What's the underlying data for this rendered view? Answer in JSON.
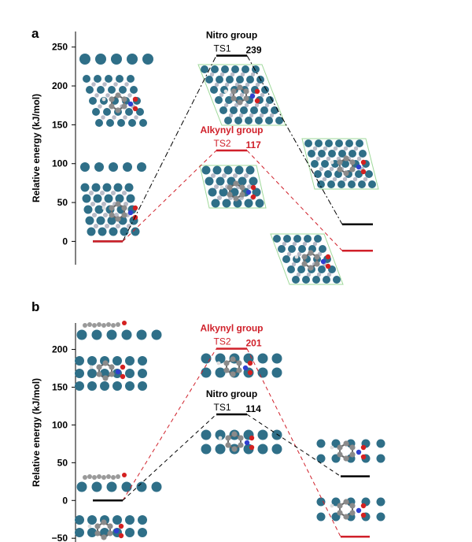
{
  "chart_data": [
    {
      "type": "energy-profile",
      "panel_label": "a",
      "ylabel": "Relative energy (kJ/mol)",
      "ylim": [
        -30,
        270
      ],
      "yticks": [
        0,
        50,
        100,
        150,
        200,
        250
      ],
      "series": [
        {
          "name": "Nitro group",
          "color": "#000000",
          "points": [
            {
              "stage": "initial",
              "energy": 0
            },
            {
              "stage": "TS",
              "label": "TS1",
              "energy": 239
            },
            {
              "stage": "final",
              "energy": 22
            }
          ]
        },
        {
          "name": "Alkynyl group",
          "color": "#d0202a",
          "points": [
            {
              "stage": "initial",
              "energy": 0
            },
            {
              "stage": "TS",
              "label": "TS2",
              "energy": 117
            },
            {
              "stage": "final",
              "energy": -12
            }
          ]
        }
      ]
    },
    {
      "type": "energy-profile",
      "panel_label": "b",
      "ylabel": "Relative energy (kJ/mol)",
      "ylim": [
        -55,
        235
      ],
      "yticks": [
        -50,
        0,
        50,
        100,
        150,
        200
      ],
      "series": [
        {
          "name": "Alkynyl group",
          "color": "#d0202a",
          "points": [
            {
              "stage": "initial",
              "energy": 0
            },
            {
              "stage": "TS",
              "label": "TS2",
              "energy": 201
            },
            {
              "stage": "final",
              "energy": -48
            }
          ]
        },
        {
          "name": "Nitro group",
          "color": "#000000",
          "points": [
            {
              "stage": "initial",
              "energy": 0
            },
            {
              "stage": "TS",
              "label": "TS1",
              "energy": 114
            },
            {
              "stage": "final",
              "energy": 32
            }
          ]
        }
      ]
    }
  ]
}
